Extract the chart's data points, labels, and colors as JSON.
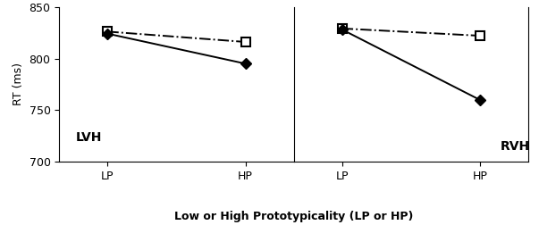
{
  "ylim": [
    700,
    850
  ],
  "yticks": [
    700,
    750,
    800,
    850
  ],
  "ylabel": "RT (ms)",
  "xlabel": "Low or High Prototypicality (LP or HP)",
  "xtick_labels": [
    "LP",
    "HP"
  ],
  "x": [
    0,
    1
  ],
  "LVH": {
    "dashed_square": [
      826,
      816
    ],
    "solid_diamond": [
      824,
      795
    ]
  },
  "RVH": {
    "dashed_square": [
      829,
      822
    ],
    "solid_diamond": [
      828,
      760
    ]
  },
  "line_color": "#000000",
  "bg_color": "#ffffff",
  "panel_bg": "#ffffff",
  "font_size_label": 9,
  "font_size_tick": 9,
  "font_size_panel_label": 10,
  "font_size_xlabel": 9
}
